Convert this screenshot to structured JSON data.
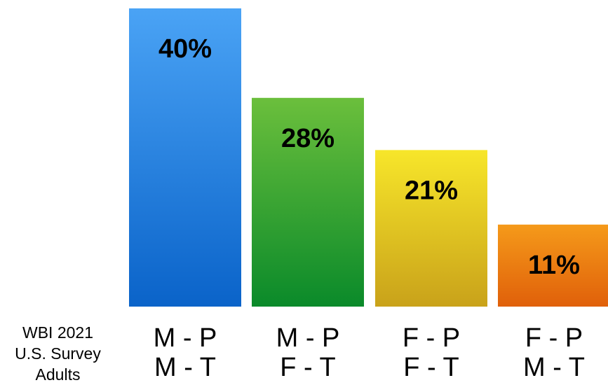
{
  "source_label": {
    "lines": [
      "WBI 2021",
      "U.S. Survey",
      "Adults"
    ]
  },
  "chart_data": {
    "type": "bar",
    "categories": [
      {
        "line1": "M - P",
        "line2": "M - T"
      },
      {
        "line1": "M - P",
        "line2": "F - T"
      },
      {
        "line1": "F - P",
        "line2": "F - T"
      },
      {
        "line1": "F - P",
        "line2": "M - T"
      }
    ],
    "values": [
      40,
      28,
      21,
      11
    ],
    "value_labels": [
      "40%",
      "28%",
      "21%",
      "11%"
    ],
    "ylim": [
      0,
      40
    ],
    "grid": false,
    "legend": "none",
    "colors": [
      {
        "top": "#4aa3f5",
        "bottom": "#0a63c9"
      },
      {
        "top": "#6bbf3c",
        "bottom": "#0a8a2a"
      },
      {
        "top": "#f7e62a",
        "bottom": "#c9a21a"
      },
      {
        "top": "#f59a1a",
        "bottom": "#e0600a"
      }
    ]
  }
}
